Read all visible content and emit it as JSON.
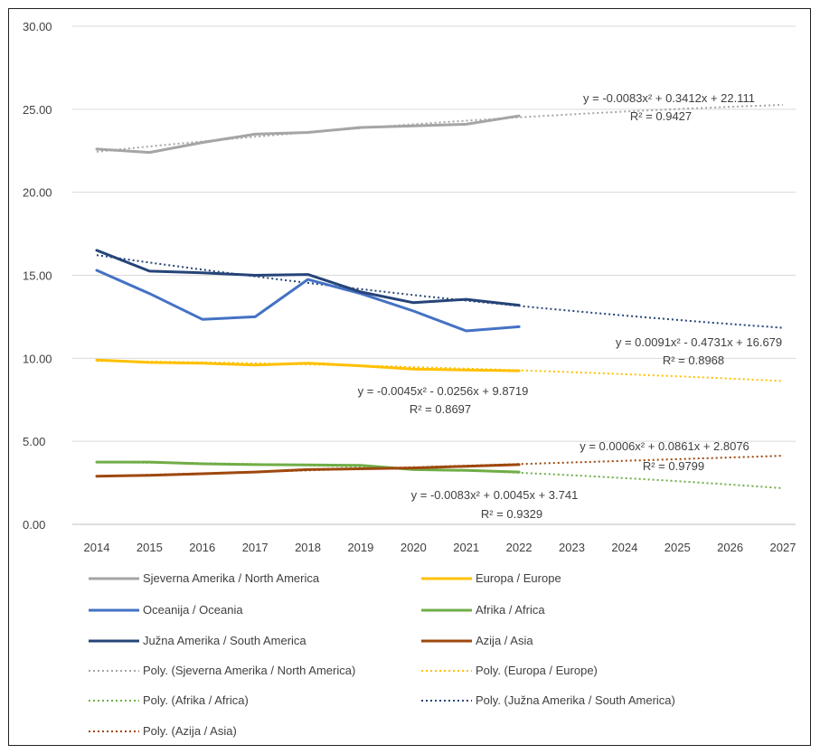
{
  "chart_data": {
    "type": "line",
    "title": "",
    "xlabel": "",
    "ylabel": "",
    "x": [
      2014,
      2015,
      2016,
      2017,
      2018,
      2019,
      2020,
      2021,
      2022
    ],
    "x_ticks": [
      "2014",
      "2015",
      "2016",
      "2017",
      "2018",
      "2019",
      "2020",
      "2021",
      "2022",
      "2023",
      "2024",
      "2025",
      "2026",
      "2027"
    ],
    "y_ticks": [
      "0.00",
      "5.00",
      "10.00",
      "15.00",
      "20.00",
      "25.00",
      "30.00"
    ],
    "ylim": [
      0,
      30
    ],
    "xlim": [
      2014,
      2027
    ],
    "grid": "horizontal",
    "legend_position": "bottom",
    "series": [
      {
        "name": "Sjeverna Amerika / North America",
        "color": "#a5a5a5",
        "values": [
          22.6,
          22.4,
          23.0,
          23.5,
          23.6,
          23.9,
          24.0,
          24.1,
          24.6
        ]
      },
      {
        "name": "Europa / Europe",
        "color": "#ffc000",
        "values": [
          9.9,
          9.75,
          9.7,
          9.6,
          9.7,
          9.55,
          9.35,
          9.3,
          9.25
        ]
      },
      {
        "name": "Oceanija / Oceania",
        "color": "#4472c4",
        "values": [
          15.3,
          13.9,
          12.35,
          12.5,
          14.75,
          13.9,
          12.85,
          11.65,
          11.9
        ]
      },
      {
        "name": "Afrika / Africa",
        "color": "#70ad47",
        "values": [
          3.75,
          3.75,
          3.65,
          3.6,
          3.58,
          3.55,
          3.3,
          3.25,
          3.15
        ]
      },
      {
        "name": "Južna Amerika / South America",
        "color": "#264478",
        "values": [
          16.5,
          15.25,
          15.15,
          15.0,
          15.05,
          14.0,
          13.35,
          13.55,
          13.2
        ]
      },
      {
        "name": "Azija / Asia",
        "color": "#9e480e",
        "values": [
          2.9,
          2.95,
          3.05,
          3.15,
          3.3,
          3.35,
          3.4,
          3.5,
          3.6
        ]
      }
    ],
    "trendlines": [
      {
        "name": "Poly. (Sjeverna Amerika / North America)",
        "color": "#a5a5a5",
        "coef": [
          -0.0083,
          0.3412,
          22.111
        ],
        "equation": "y = -0.0083x² + 0.3412x + 22.111",
        "r2": "R² = 0.9427"
      },
      {
        "name": "Poly. (Europa / Europe)",
        "color": "#ffc000",
        "coef": [
          -0.0045,
          -0.0256,
          9.8719
        ],
        "equation": "y = -0.0045x² - 0.0256x + 9.8719",
        "r2": "R² = 0.8697"
      },
      {
        "name": "Poly. (Afrika / Africa)",
        "color": "#70ad47",
        "coef": [
          -0.0083,
          0.0045,
          3.741
        ],
        "equation": "y = -0.0083x² + 0.0045x + 3.741",
        "r2": "R² = 0.9329"
      },
      {
        "name": "Poly. (Južna Amerika / South America)",
        "color": "#264478",
        "coef": [
          0.0091,
          -0.4731,
          16.679
        ],
        "equation": "y = 0.0091x² - 0.4731x + 16.679",
        "r2": "R² = 0.8968"
      },
      {
        "name": "Poly. (Azija / Asia)",
        "color": "#9e480e",
        "coef": [
          0.0006,
          0.0861,
          2.8076
        ],
        "equation": "y = 0.0006x² + 0.0861x + 2.8076",
        "r2": "R² = 0.9799"
      }
    ]
  }
}
